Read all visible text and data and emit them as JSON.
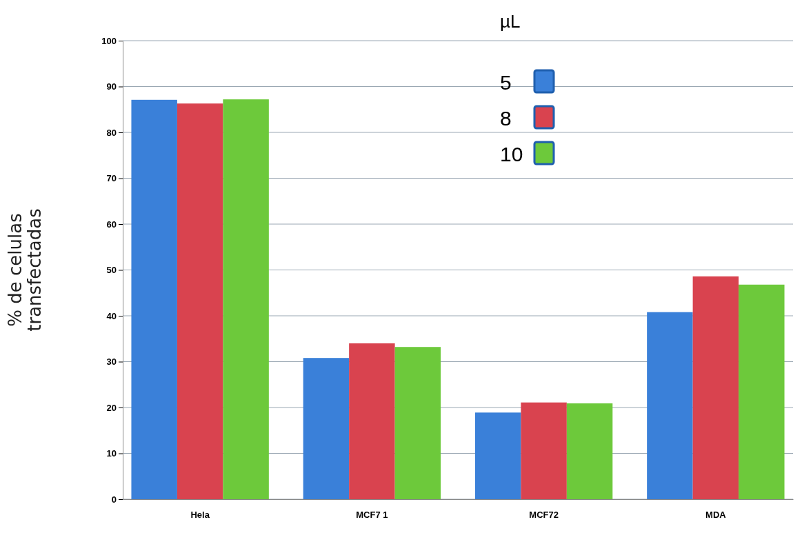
{
  "chart_data": {
    "type": "bar",
    "ylabel": "% de celulas\ntransfectadas",
    "legend_title": "µL",
    "categories": [
      "Hela",
      "MCF7 1",
      "MCF72",
      "MDA"
    ],
    "series": [
      {
        "name": "5",
        "color": "#3a80d9",
        "values": [
          87.1,
          30.8,
          18.9,
          40.8
        ]
      },
      {
        "name": "8",
        "color": "#d9434f",
        "values": [
          86.3,
          34.0,
          21.1,
          48.6
        ]
      },
      {
        "name": "10",
        "color": "#6dc93b",
        "values": [
          87.2,
          33.2,
          20.9,
          46.8
        ]
      }
    ],
    "ylim": [
      0,
      100
    ],
    "yticks": [
      0,
      10,
      20,
      30,
      40,
      50,
      60,
      70,
      80,
      90,
      100
    ],
    "grid": "y",
    "legend": "top right"
  }
}
